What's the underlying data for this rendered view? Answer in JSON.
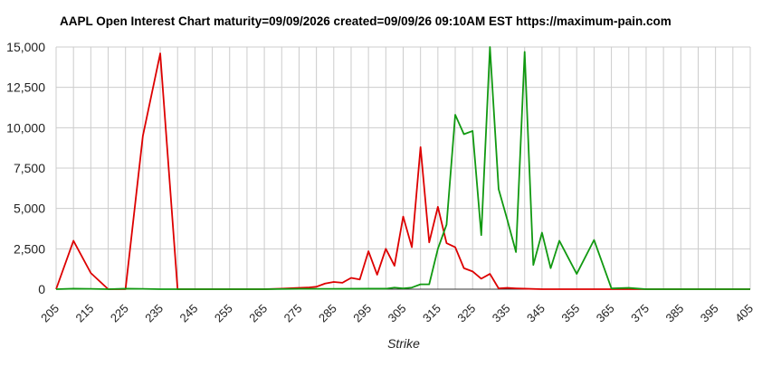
{
  "chart_data": {
    "type": "line",
    "title": "AAPL Open Interest Chart maturity=09/09/2026 created=09/09/26 09:10AM EST https://maximum-pain.com",
    "xlabel": "Strike",
    "ylabel": "",
    "xlim": [
      205,
      405
    ],
    "ylim": [
      0,
      15000
    ],
    "grid": true,
    "x_ticks": [
      "205",
      "215",
      "225",
      "235",
      "245",
      "255",
      "265",
      "275",
      "285",
      "295",
      "305",
      "315",
      "325",
      "335",
      "345",
      "355",
      "365",
      "375",
      "385",
      "395",
      "405"
    ],
    "y_ticks": [
      "0",
      "2,500",
      "5,000",
      "7,500",
      "10,000",
      "12,500",
      "15,000"
    ],
    "x_tick_values": [
      205,
      215,
      225,
      235,
      245,
      255,
      265,
      275,
      285,
      295,
      305,
      315,
      325,
      335,
      345,
      355,
      365,
      375,
      385,
      395,
      405
    ],
    "y_tick_values": [
      0,
      2500,
      5000,
      7500,
      10000,
      12500,
      15000
    ],
    "series": [
      {
        "color": "#dd0000",
        "points": [
          [
            205,
            0
          ],
          [
            210,
            3000
          ],
          [
            215,
            1000
          ],
          [
            220,
            0
          ],
          [
            225,
            0
          ],
          [
            230,
            9500
          ],
          [
            235,
            14600
          ],
          [
            240,
            0
          ],
          [
            245,
            0
          ],
          [
            250,
            0
          ],
          [
            255,
            0
          ],
          [
            260,
            0
          ],
          [
            265,
            0
          ],
          [
            270,
            30
          ],
          [
            275,
            80
          ],
          [
            277.5,
            100
          ],
          [
            280,
            150
          ],
          [
            282.5,
            350
          ],
          [
            285,
            450
          ],
          [
            287.5,
            400
          ],
          [
            290,
            700
          ],
          [
            292.5,
            600
          ],
          [
            295,
            2350
          ],
          [
            297.5,
            900
          ],
          [
            300,
            2500
          ],
          [
            302.5,
            1450
          ],
          [
            305,
            4500
          ],
          [
            307.5,
            2600
          ],
          [
            310,
            8800
          ],
          [
            312.5,
            2900
          ],
          [
            315,
            5100
          ],
          [
            317.5,
            2850
          ],
          [
            320,
            2600
          ],
          [
            322.5,
            1300
          ],
          [
            325,
            1100
          ],
          [
            327.5,
            650
          ],
          [
            330,
            950
          ],
          [
            332.5,
            50
          ],
          [
            335,
            80
          ],
          [
            337.5,
            50
          ],
          [
            340,
            30
          ],
          [
            345,
            0
          ],
          [
            350,
            0
          ],
          [
            360,
            0
          ],
          [
            370,
            0
          ],
          [
            380,
            0
          ],
          [
            390,
            0
          ],
          [
            400,
            0
          ],
          [
            405,
            0
          ]
        ]
      },
      {
        "color": "#119911",
        "points": [
          [
            205,
            0
          ],
          [
            210,
            30
          ],
          [
            215,
            20
          ],
          [
            220,
            0
          ],
          [
            225,
            30
          ],
          [
            230,
            20
          ],
          [
            235,
            0
          ],
          [
            240,
            0
          ],
          [
            245,
            0
          ],
          [
            255,
            0
          ],
          [
            265,
            0
          ],
          [
            275,
            20
          ],
          [
            285,
            20
          ],
          [
            295,
            30
          ],
          [
            300,
            30
          ],
          [
            302.5,
            100
          ],
          [
            305,
            50
          ],
          [
            307.5,
            100
          ],
          [
            310,
            300
          ],
          [
            312.5,
            300
          ],
          [
            315,
            2500
          ],
          [
            317.5,
            4000
          ],
          [
            320,
            10800
          ],
          [
            322.5,
            9600
          ],
          [
            325,
            9800
          ],
          [
            327.5,
            3350
          ],
          [
            330,
            15000
          ],
          [
            332.5,
            6200
          ],
          [
            335,
            4300
          ],
          [
            337.5,
            2300
          ],
          [
            340,
            14700
          ],
          [
            342.5,
            1500
          ],
          [
            345,
            3500
          ],
          [
            347.5,
            1300
          ],
          [
            350,
            3000
          ],
          [
            355,
            950
          ],
          [
            360,
            3050
          ],
          [
            365,
            50
          ],
          [
            370,
            80
          ],
          [
            375,
            0
          ],
          [
            380,
            0
          ],
          [
            390,
            0
          ],
          [
            400,
            0
          ],
          [
            405,
            0
          ]
        ]
      }
    ]
  }
}
